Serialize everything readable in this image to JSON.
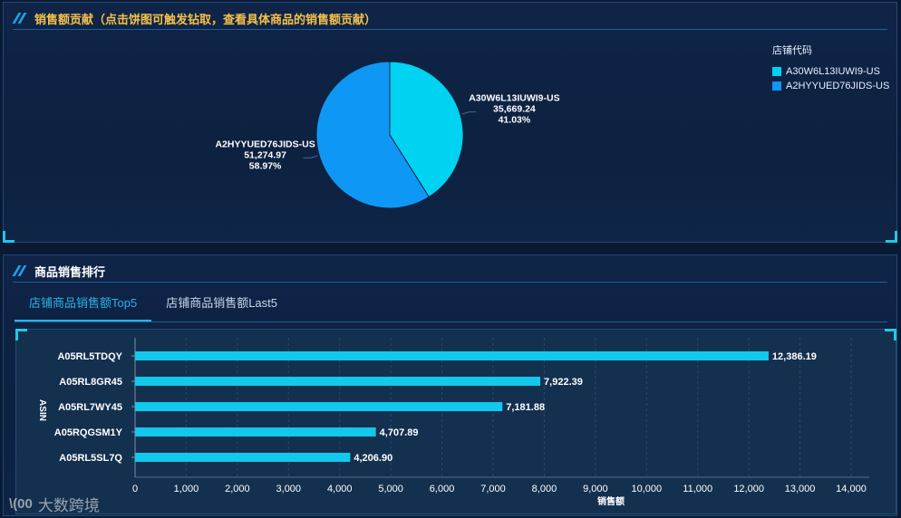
{
  "top_panel": {
    "title": "销售额贡献（点击饼图可触发钻取，查看具体商品的销售额贡献）"
  },
  "bottom_panel": {
    "title": "商品销售排行",
    "tabs": [
      {
        "label": "店铺商品销售额Top5",
        "active": true
      },
      {
        "label": "店铺商品销售额Last5",
        "active": false
      }
    ]
  },
  "watermark": {
    "logo": "\\(00",
    "text": "大数跨境"
  },
  "colors": {
    "accent": "#2ab3e8",
    "slice1": "#00d2f2",
    "slice2": "#0f97f5",
    "bar": "#12c8ec"
  },
  "chart_data": [
    {
      "type": "pie",
      "title": "",
      "legend": {
        "title": "店铺代码",
        "position": "top-right"
      },
      "slices": [
        {
          "label": "A30W6L13IUWI9-US",
          "value": 35669.24,
          "value_text": "35,669.24",
          "percent_text": "41.03%",
          "color": "#00d2f2"
        },
        {
          "label": "A2HYYUED76JIDS-US",
          "value": 51274.97,
          "value_text": "51,274.97",
          "percent_text": "58.97%",
          "color": "#0f97f5"
        }
      ]
    },
    {
      "type": "bar",
      "orientation": "horizontal",
      "xlabel": "销售额",
      "ylabel": "ASIN",
      "xlim": [
        0,
        14000
      ],
      "xticks": [
        "0",
        "1,000",
        "2,000",
        "3,000",
        "4,000",
        "5,000",
        "6,000",
        "7,000",
        "8,000",
        "9,000",
        "10,000",
        "11,000",
        "12,000",
        "13,000",
        "14,000"
      ],
      "categories": [
        "A05RL5TDQY",
        "A05RL8GR45",
        "A05RL7WY45",
        "A05RQGSM1Y",
        "A05RL5SL7Q"
      ],
      "values": [
        12386.19,
        7922.39,
        7181.88,
        4707.89,
        4206.9
      ],
      "value_labels": [
        "12,386.19",
        "7,922.39",
        "7,181.88",
        "4,707.89",
        "4,206.90"
      ]
    }
  ]
}
